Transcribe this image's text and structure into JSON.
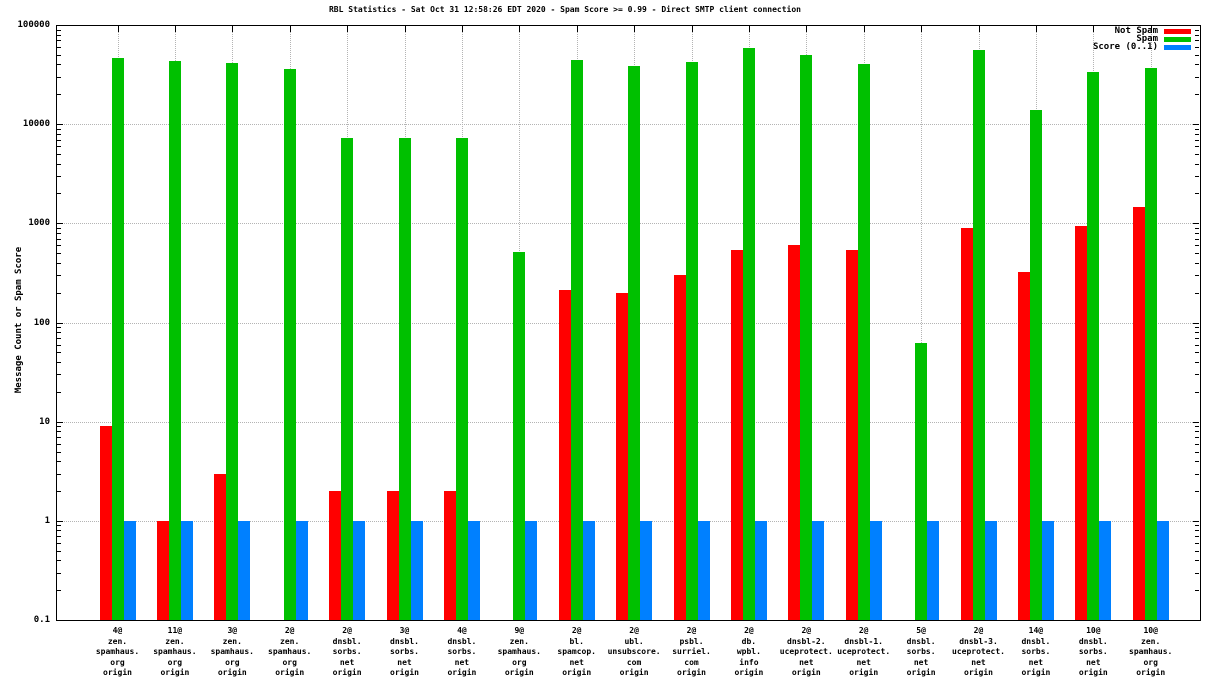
{
  "chart_data": {
    "type": "bar",
    "title": "RBL Statistics - Sat Oct 31 12:58:26 EDT 2020 - Spam Score >= 0.99 - Direct SMTP client connection",
    "ylabel": "Message Count or Spam Score",
    "xlabel": "",
    "y_scale": "log",
    "ylim": [
      0.1,
      100000
    ],
    "yticks": [
      100000,
      10000,
      1000,
      100,
      10,
      1,
      0.1
    ],
    "grid": "dotted gray horizontal lines at decades and vertical lines at each category",
    "legend_position": "top-right-inside",
    "categories": [
      [
        "4@",
        "zen.",
        "spamhaus.",
        "org",
        "origin"
      ],
      [
        "11@",
        "zen.",
        "spamhaus.",
        "org",
        "origin"
      ],
      [
        "3@",
        "zen.",
        "spamhaus.",
        "org",
        "origin"
      ],
      [
        "2@",
        "zen.",
        "spamhaus.",
        "org",
        "origin"
      ],
      [
        "2@",
        "dnsbl.",
        "sorbs.",
        "net",
        "origin"
      ],
      [
        "3@",
        "dnsbl.",
        "sorbs.",
        "net",
        "origin"
      ],
      [
        "4@",
        "dnsbl.",
        "sorbs.",
        "net",
        "origin"
      ],
      [
        "9@",
        "zen.",
        "spamhaus.",
        "org",
        "origin"
      ],
      [
        "2@",
        "bl.",
        "spamcop.",
        "net",
        "origin"
      ],
      [
        "2@",
        "ubl.",
        "unsubscore.",
        "com",
        "origin"
      ],
      [
        "2@",
        "psbl.",
        "surriel.",
        "com",
        "origin"
      ],
      [
        "2@",
        "db.",
        "wpbl.",
        "info",
        "origin"
      ],
      [
        "2@",
        "dnsbl-2.",
        "uceprotect.",
        "net",
        "origin"
      ],
      [
        "2@",
        "dnsbl-1.",
        "uceprotect.",
        "net",
        "origin"
      ],
      [
        "5@",
        "dnsbl.",
        "sorbs.",
        "net",
        "origin"
      ],
      [
        "2@",
        "dnsbl-3.",
        "uceprotect.",
        "net",
        "origin"
      ],
      [
        "14@",
        "dnsbl.",
        "sorbs.",
        "net",
        "origin"
      ],
      [
        "10@",
        "dnsbl.",
        "sorbs.",
        "net",
        "origin"
      ],
      [
        "10@",
        "zen.",
        "spamhaus.",
        "org",
        "origin"
      ]
    ],
    "series": [
      {
        "name": "Not Spam",
        "color": "#ff0000",
        "values": [
          9,
          1,
          3,
          0,
          2,
          2,
          2,
          0,
          215,
          200,
          300,
          540,
          610,
          535,
          0,
          900,
          320,
          950,
          1450
        ]
      },
      {
        "name": "Spam",
        "color": "#00c000",
        "values": [
          47000,
          43000,
          41000,
          36000,
          7200,
          7200,
          7200,
          510,
          44000,
          39000,
          42500,
          58000,
          50000,
          40000,
          62,
          56000,
          14000,
          33500,
          37000
        ]
      },
      {
        "name": "Score (0..1)",
        "color": "#0080ff",
        "values": [
          1,
          1,
          1,
          1,
          1,
          1,
          1,
          1,
          1,
          1,
          1,
          1,
          1,
          1,
          1,
          1,
          1,
          1,
          1
        ]
      }
    ]
  }
}
